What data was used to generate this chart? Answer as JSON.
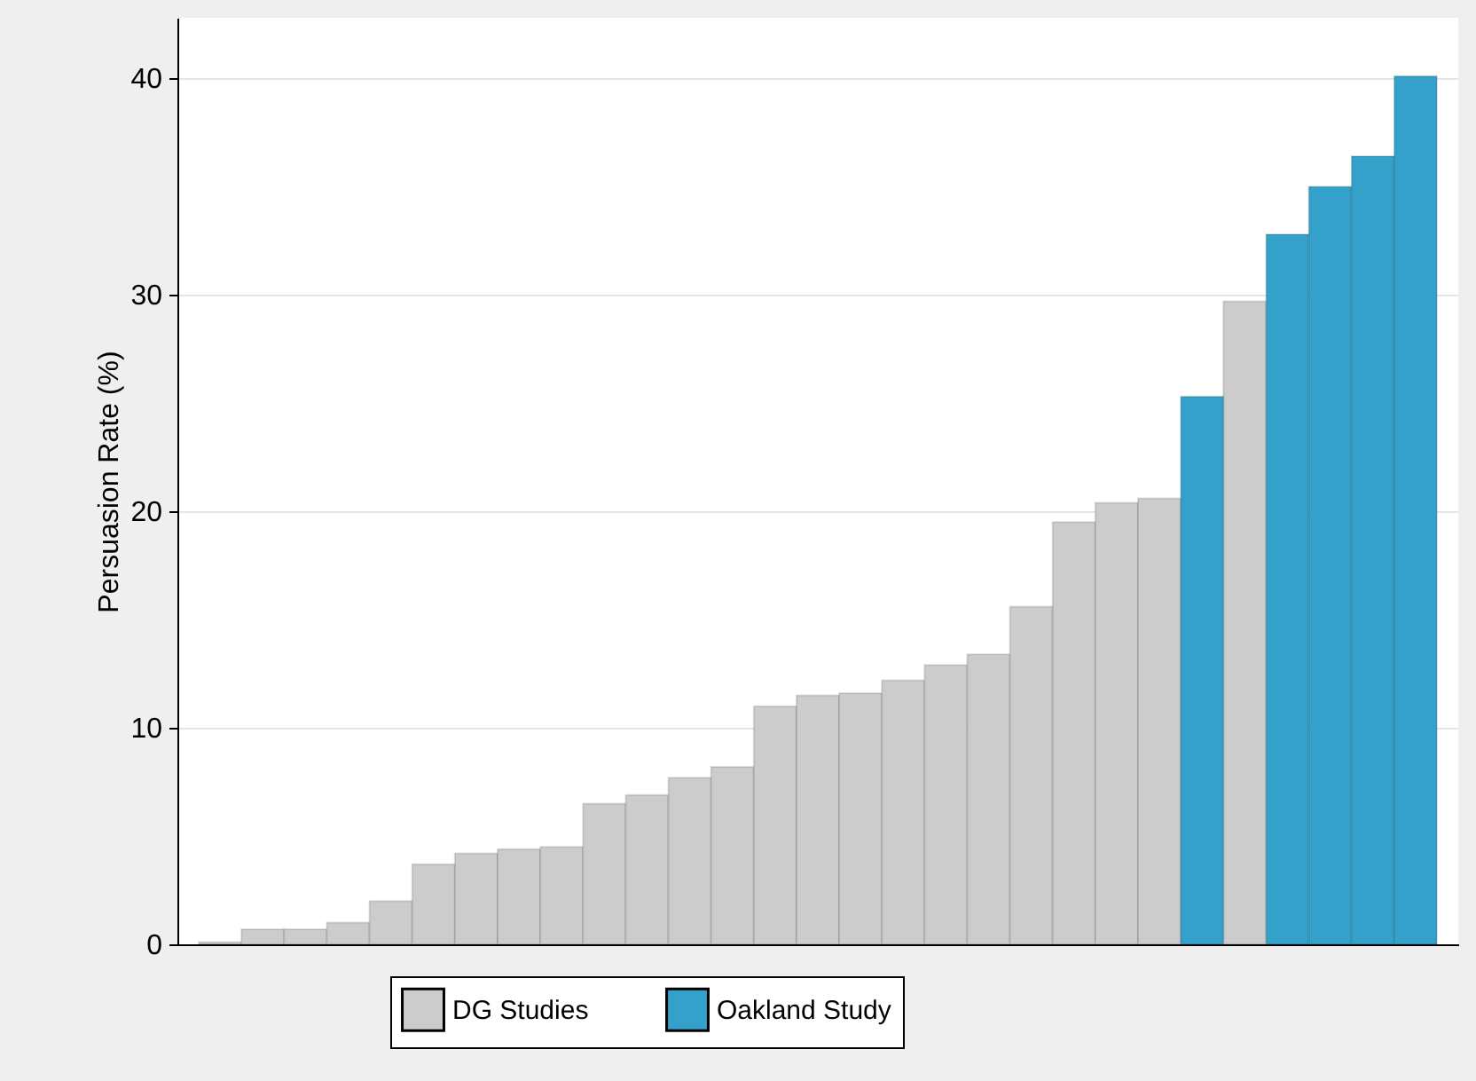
{
  "chart_data": {
    "type": "bar",
    "ylabel": "Persuasion Rate (%)",
    "categories": [
      null,
      null,
      null,
      null,
      null,
      null,
      null,
      null,
      null,
      null,
      null,
      null,
      null,
      null,
      null,
      null,
      null,
      null,
      null,
      null,
      null,
      null,
      null,
      null,
      null,
      null,
      null,
      null,
      null
    ],
    "series": [
      {
        "name": "DG Studies",
        "color": "#cccccc",
        "values": [
          0.1,
          0.7,
          0.7,
          1.0,
          2.0,
          3.7,
          4.2,
          4.4,
          4.5,
          6.5,
          6.9,
          7.7,
          8.2,
          11.0,
          11.5,
          11.6,
          12.2,
          12.9,
          13.4,
          15.6,
          19.5,
          20.4,
          20.6,
          null,
          29.7,
          null,
          null,
          null,
          null
        ]
      },
      {
        "name": "Oakland Study",
        "color": "#33a1c9",
        "values": [
          null,
          null,
          null,
          null,
          null,
          null,
          null,
          null,
          null,
          null,
          null,
          null,
          null,
          null,
          null,
          null,
          null,
          null,
          null,
          null,
          null,
          null,
          null,
          25.3,
          null,
          32.8,
          35.0,
          36.4,
          40.1
        ]
      }
    ],
    "ylim": [
      0,
      42.8
    ],
    "yticks": [
      0,
      10,
      20,
      30,
      40
    ],
    "grid": "y",
    "legend": "bottom"
  }
}
